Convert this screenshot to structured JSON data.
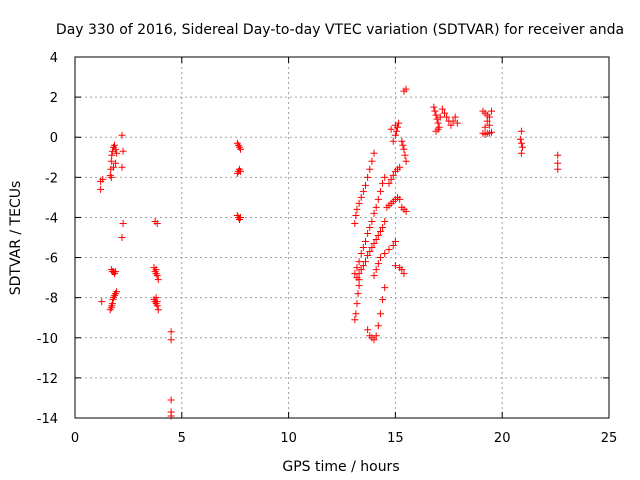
{
  "chart_data": {
    "type": "scatter",
    "title": "Day 330 of 2016, Sidereal Day-to-day VTEC variation (SDTVAR) for receiver anda",
    "xlabel": "GPS time / hours",
    "ylabel": "SDTVAR / TECUs",
    "xlim": [
      0,
      25
    ],
    "ylim": [
      -14,
      4
    ],
    "xticks": [
      0,
      5,
      10,
      15,
      20,
      25
    ],
    "yticks": [
      -14,
      -12,
      -10,
      -8,
      -6,
      -4,
      -2,
      0,
      2,
      4
    ],
    "grid": true,
    "marker": "+",
    "marker_color": "#ff0000",
    "series": [
      {
        "name": "SDTVAR",
        "points": [
          [
            1.2,
            -2.2
          ],
          [
            1.2,
            -2.6
          ],
          [
            1.25,
            -8.2
          ],
          [
            1.3,
            -2.1
          ],
          [
            1.65,
            -1.9
          ],
          [
            1.68,
            -1.6
          ],
          [
            1.7,
            -1.2
          ],
          [
            1.72,
            -0.9
          ],
          [
            1.75,
            -0.7
          ],
          [
            1.8,
            -0.5
          ],
          [
            1.85,
            -0.4
          ],
          [
            1.9,
            -0.6
          ],
          [
            1.95,
            -0.8
          ],
          [
            1.7,
            -2.0
          ],
          [
            1.8,
            -1.5
          ],
          [
            1.9,
            -1.3
          ],
          [
            1.7,
            -6.6
          ],
          [
            1.75,
            -6.7
          ],
          [
            1.8,
            -6.7
          ],
          [
            1.85,
            -6.8
          ],
          [
            1.9,
            -6.7
          ],
          [
            1.65,
            -8.6
          ],
          [
            1.7,
            -8.5
          ],
          [
            1.72,
            -8.4
          ],
          [
            1.75,
            -8.3
          ],
          [
            1.78,
            -8.1
          ],
          [
            1.8,
            -8.0
          ],
          [
            1.85,
            -7.9
          ],
          [
            1.9,
            -7.8
          ],
          [
            1.95,
            -7.7
          ],
          [
            2.2,
            0.1
          ],
          [
            2.25,
            -0.7
          ],
          [
            2.2,
            -1.5
          ],
          [
            2.25,
            -4.3
          ],
          [
            2.2,
            -5.0
          ],
          [
            3.75,
            -4.2
          ],
          [
            3.85,
            -4.3
          ],
          [
            3.7,
            -6.5
          ],
          [
            3.75,
            -6.7
          ],
          [
            3.8,
            -6.8
          ],
          [
            3.85,
            -6.9
          ],
          [
            3.9,
            -7.1
          ],
          [
            3.8,
            -6.6
          ],
          [
            3.7,
            -8.1
          ],
          [
            3.75,
            -8.2
          ],
          [
            3.8,
            -8.3
          ],
          [
            3.85,
            -8.4
          ],
          [
            3.9,
            -8.6
          ],
          [
            3.8,
            -8.0
          ],
          [
            3.85,
            -8.2
          ],
          [
            4.5,
            -9.7
          ],
          [
            4.5,
            -10.1
          ],
          [
            4.5,
            -13.1
          ],
          [
            4.5,
            -13.7
          ],
          [
            4.5,
            -13.9
          ],
          [
            7.6,
            -0.3
          ],
          [
            7.65,
            -0.4
          ],
          [
            7.7,
            -0.5
          ],
          [
            7.75,
            -0.6
          ],
          [
            7.6,
            -1.8
          ],
          [
            7.65,
            -1.7
          ],
          [
            7.7,
            -1.6
          ],
          [
            7.75,
            -1.7
          ],
          [
            7.6,
            -3.9
          ],
          [
            7.65,
            -4.0
          ],
          [
            7.7,
            -4.1
          ],
          [
            7.75,
            -4.0
          ],
          [
            13.1,
            -4.3
          ],
          [
            13.15,
            -3.9
          ],
          [
            13.2,
            -3.6
          ],
          [
            13.3,
            -3.3
          ],
          [
            13.4,
            -3.0
          ],
          [
            13.5,
            -2.7
          ],
          [
            13.6,
            -2.4
          ],
          [
            13.7,
            -2.0
          ],
          [
            13.8,
            -1.6
          ],
          [
            13.9,
            -1.2
          ],
          [
            14.0,
            -0.8
          ],
          [
            13.1,
            -6.8
          ],
          [
            13.2,
            -6.5
          ],
          [
            13.3,
            -6.2
          ],
          [
            13.4,
            -5.8
          ],
          [
            13.5,
            -5.5
          ],
          [
            13.6,
            -5.2
          ],
          [
            13.7,
            -4.8
          ],
          [
            13.8,
            -4.5
          ],
          [
            13.9,
            -4.2
          ],
          [
            14.0,
            -3.8
          ],
          [
            14.1,
            -3.5
          ],
          [
            14.2,
            -3.1
          ],
          [
            14.3,
            -2.7
          ],
          [
            14.4,
            -2.3
          ],
          [
            14.5,
            -2.0
          ],
          [
            13.2,
            -7.0
          ],
          [
            13.3,
            -6.8
          ],
          [
            13.4,
            -6.6
          ],
          [
            13.5,
            -6.4
          ],
          [
            13.6,
            -6.2
          ],
          [
            13.7,
            -5.9
          ],
          [
            13.8,
            -5.7
          ],
          [
            13.9,
            -5.5
          ],
          [
            14.0,
            -5.3
          ],
          [
            14.1,
            -5.1
          ],
          [
            14.2,
            -4.9
          ],
          [
            14.3,
            -4.7
          ],
          [
            14.4,
            -4.5
          ],
          [
            14.5,
            -4.2
          ],
          [
            13.1,
            -9.1
          ],
          [
            13.15,
            -8.8
          ],
          [
            13.2,
            -8.3
          ],
          [
            13.25,
            -7.8
          ],
          [
            13.3,
            -7.4
          ],
          [
            13.3,
            -7.1
          ],
          [
            13.7,
            -9.6
          ],
          [
            13.8,
            -9.9
          ],
          [
            13.9,
            -10.0
          ],
          [
            14.0,
            -10.1
          ],
          [
            14.1,
            -9.9
          ],
          [
            14.2,
            -9.4
          ],
          [
            14.3,
            -8.8
          ],
          [
            14.4,
            -8.1
          ],
          [
            14.5,
            -7.5
          ],
          [
            14.0,
            -6.9
          ],
          [
            14.1,
            -6.6
          ],
          [
            14.2,
            -6.3
          ],
          [
            14.3,
            -6.0
          ],
          [
            14.5,
            -5.8
          ],
          [
            14.7,
            -5.6
          ],
          [
            14.9,
            -5.4
          ],
          [
            15.0,
            -5.2
          ],
          [
            14.6,
            -3.5
          ],
          [
            14.7,
            -3.4
          ],
          [
            14.8,
            -3.3
          ],
          [
            14.9,
            -3.2
          ],
          [
            15.0,
            -3.1
          ],
          [
            15.1,
            -3.0
          ],
          [
            15.2,
            -3.1
          ],
          [
            14.7,
            -2.3
          ],
          [
            14.8,
            -2.1
          ],
          [
            14.9,
            -1.9
          ],
          [
            15.0,
            -1.7
          ],
          [
            15.1,
            -1.6
          ],
          [
            15.2,
            -1.5
          ],
          [
            14.9,
            -0.2
          ],
          [
            15.0,
            0.1
          ],
          [
            15.05,
            0.3
          ],
          [
            15.1,
            0.5
          ],
          [
            15.15,
            0.7
          ],
          [
            15.0,
            0.6
          ],
          [
            14.8,
            0.4
          ],
          [
            15.0,
            -6.4
          ],
          [
            15.2,
            -6.5
          ],
          [
            15.3,
            -6.6
          ],
          [
            15.4,
            -6.8
          ],
          [
            15.3,
            -3.5
          ],
          [
            15.4,
            -3.6
          ],
          [
            15.5,
            -3.7
          ],
          [
            15.3,
            -0.2
          ],
          [
            15.35,
            -0.4
          ],
          [
            15.4,
            -0.6
          ],
          [
            15.45,
            -0.9
          ],
          [
            15.5,
            -1.2
          ],
          [
            15.4,
            2.3
          ],
          [
            15.5,
            2.4
          ],
          [
            16.8,
            1.5
          ],
          [
            16.85,
            1.3
          ],
          [
            16.9,
            1.1
          ],
          [
            16.95,
            0.9
          ],
          [
            17.0,
            0.7
          ],
          [
            17.05,
            0.5
          ],
          [
            16.9,
            0.3
          ],
          [
            17.0,
            0.4
          ],
          [
            17.1,
            1.0
          ],
          [
            17.2,
            1.4
          ],
          [
            17.3,
            1.2
          ],
          [
            17.4,
            1.0
          ],
          [
            17.5,
            0.8
          ],
          [
            17.6,
            0.6
          ],
          [
            17.7,
            0.8
          ],
          [
            17.8,
            1.0
          ],
          [
            17.9,
            0.7
          ],
          [
            19.1,
            1.3
          ],
          [
            19.2,
            1.2
          ],
          [
            19.3,
            1.1
          ],
          [
            19.4,
            1.0
          ],
          [
            19.5,
            1.3
          ],
          [
            19.3,
            0.8
          ],
          [
            19.4,
            0.6
          ],
          [
            19.2,
            0.5
          ],
          [
            19.1,
            0.2
          ],
          [
            19.2,
            0.15
          ],
          [
            19.3,
            0.2
          ],
          [
            19.4,
            0.2
          ],
          [
            19.5,
            0.25
          ],
          [
            20.9,
            0.3
          ],
          [
            20.85,
            -0.1
          ],
          [
            20.9,
            -0.3
          ],
          [
            20.95,
            -0.5
          ],
          [
            20.9,
            -0.8
          ],
          [
            22.6,
            -0.9
          ],
          [
            22.6,
            -1.3
          ],
          [
            22.6,
            -1.6
          ]
        ]
      }
    ]
  }
}
